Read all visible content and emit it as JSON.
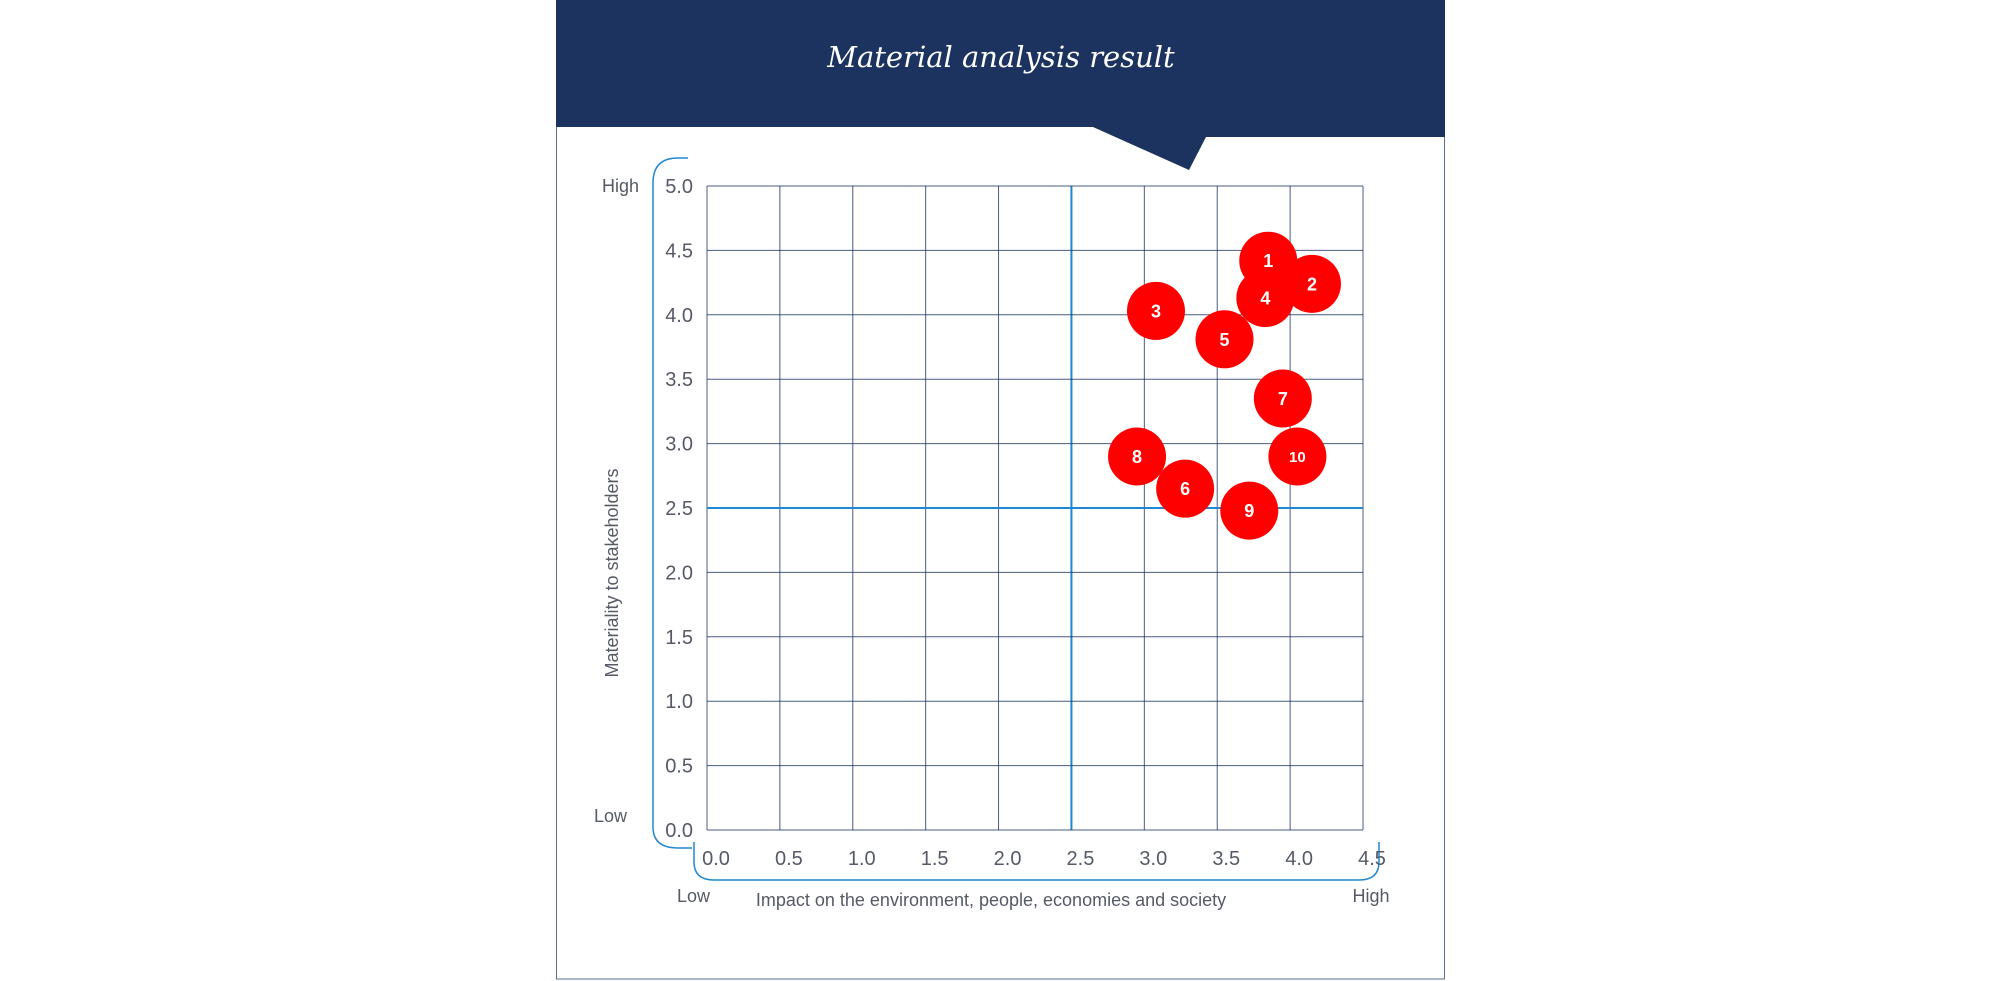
{
  "chart_data": {
    "type": "scatter",
    "title": "Material analysis result",
    "xlabel": "Impact on the environment, people, economies and society",
    "ylabel": "Materiality to stakeholders",
    "xlim": [
      0,
      4.5
    ],
    "ylim": [
      0,
      5
    ],
    "x_ticks": [
      "0.0",
      "0.5",
      "1.0",
      "1.5",
      "2.0",
      "2.5",
      "3.0",
      "3.5",
      "4.0",
      "4.5"
    ],
    "y_ticks": [
      "0.0",
      "0.5",
      "1.0",
      "1.5",
      "2.0",
      "2.5",
      "3.0",
      "3.5",
      "4.0",
      "4.5",
      "5.0"
    ],
    "x_low_label": "Low",
    "x_high_label": "High",
    "y_low_label": "Low",
    "y_high_label": "High",
    "threshold_x": 2.5,
    "threshold_y": 2.5,
    "grid": true,
    "point_color": "#ff0000",
    "grid_color": "#1c3360",
    "threshold_color": "#1e88d2",
    "header_color": "#1c3360",
    "points": [
      {
        "label": "1",
        "x": 3.85,
        "y": 4.42
      },
      {
        "label": "2",
        "x": 4.15,
        "y": 4.24
      },
      {
        "label": "3",
        "x": 3.08,
        "y": 4.03
      },
      {
        "label": "4",
        "x": 3.83,
        "y": 4.13
      },
      {
        "label": "5",
        "x": 3.55,
        "y": 3.81
      },
      {
        "label": "6",
        "x": 3.28,
        "y": 2.65
      },
      {
        "label": "7",
        "x": 3.95,
        "y": 3.35
      },
      {
        "label": "8",
        "x": 2.95,
        "y": 2.9
      },
      {
        "label": "9",
        "x": 3.72,
        "y": 2.48
      },
      {
        "label": "10",
        "x": 4.05,
        "y": 2.9
      }
    ]
  }
}
